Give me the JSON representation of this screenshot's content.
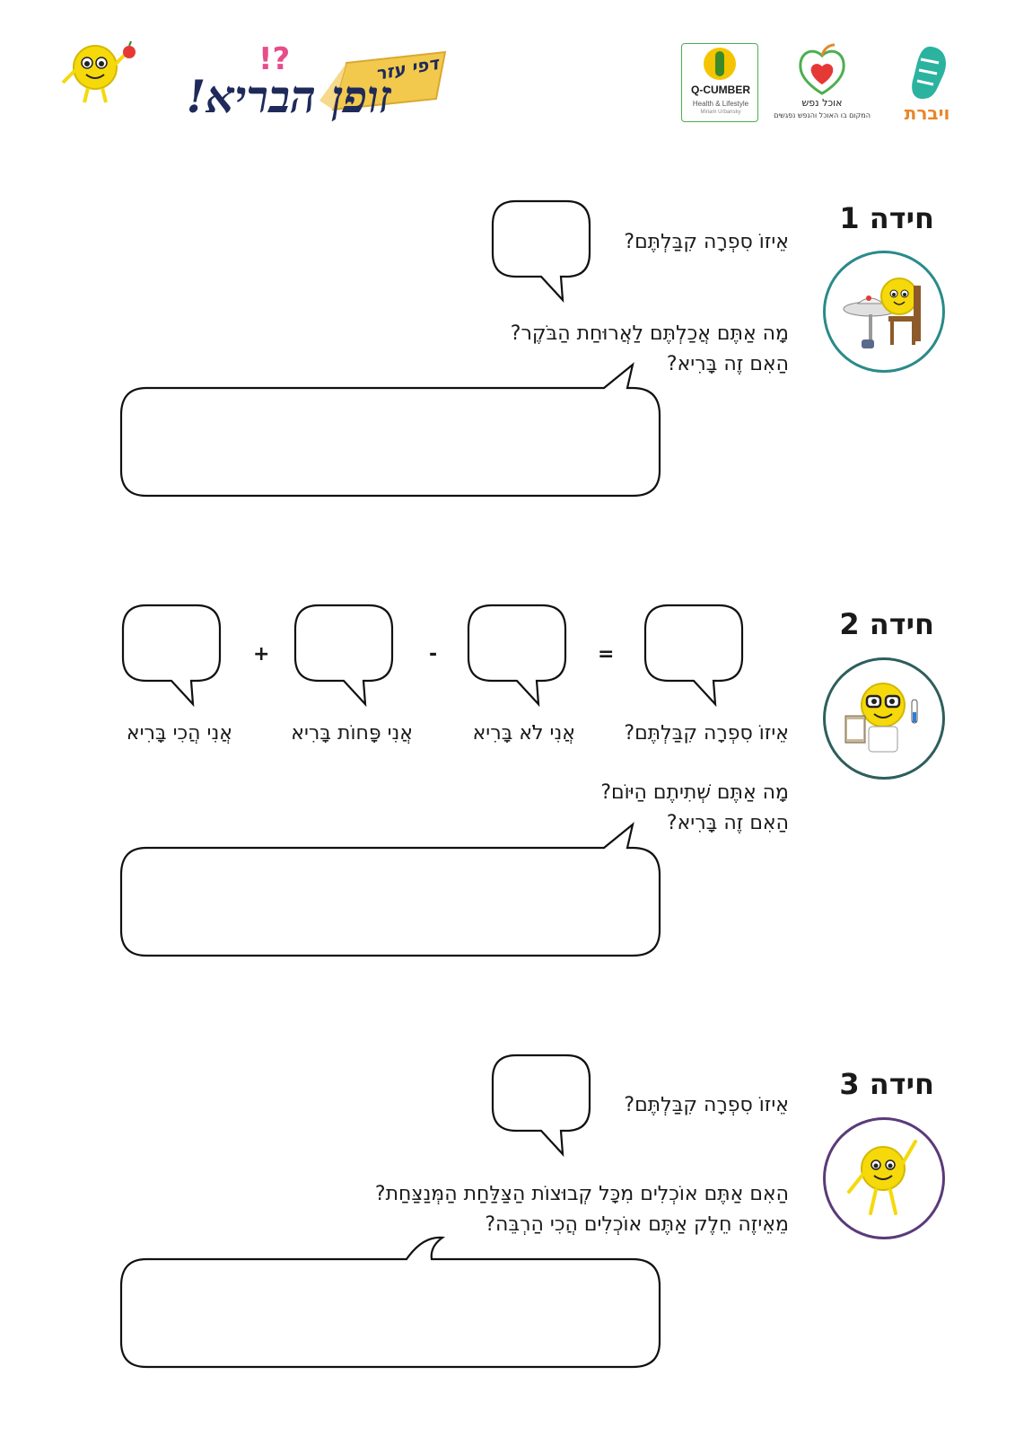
{
  "header": {
    "title_main": "זופן הבריא!",
    "title_tag": "דפי עזר",
    "logos": {
      "qcumber": {
        "name": "Q-CUMBER",
        "tagline": "Health & Lifestyle",
        "sub": "Miriam Urbansky"
      },
      "ochel_nefesh": {
        "name": "אוכל נפש",
        "tagline": "המקום בו האוכל והנפש נפגשים"
      },
      "vibrat": {
        "name": "ויברת"
      }
    }
  },
  "riddles": [
    {
      "title": "חידה 1",
      "number_question": "אֵיזוֹ סִפְרָה קִבַּלְתֶּם?",
      "question_line1": "מָה אַתֶּם אֲכַלְתֶּם לַאֲרוּחַת הַבֹּקֶר?",
      "question_line2": "הַאִם זֶה בָּרִיא?"
    },
    {
      "title": "חידה 2",
      "number_question": "אֵיזוֹ סִפְרָה קִבַּלְתֶּם?",
      "labels": [
        "אֲנִי לֹא בָּרִיא",
        "אֲנִי פָּחוֹת בָּרִיא",
        "אֲנִי הֲכִי בָּרִיא"
      ],
      "operators": {
        "equals": "=",
        "minus": "-",
        "plus": "+"
      },
      "question_line1": "מָה אַתֶּם שְׁתִיתֶם הַיּוֹם?",
      "question_line2": "הַאִם זֶה בָּרִיא?"
    },
    {
      "title": "חידה 3",
      "number_question": "אֵיזוֹ סִפְרָה קִבַּלְתֶּם?",
      "question_line1": "הַאִם אַתֶּם אוֹכְלִים מִכָּל קְבוּצוֹת הַצַּלַּחַת הַמְּנַצַּחַת?",
      "question_line2": "מֵאֵיזֶה חֵלֶק אַתֶּם אוֹכְלִים הֲכִי הַרְבֵּה?"
    }
  ],
  "colors": {
    "circle1": "#2b8a8a",
    "circle2": "#2e5e5e",
    "circle3": "#5a3a7a",
    "mascot": "#f5d90a",
    "accent_green": "#4caf50",
    "accent_orange": "#e8862b",
    "accent_navy": "#1f2a5a"
  }
}
